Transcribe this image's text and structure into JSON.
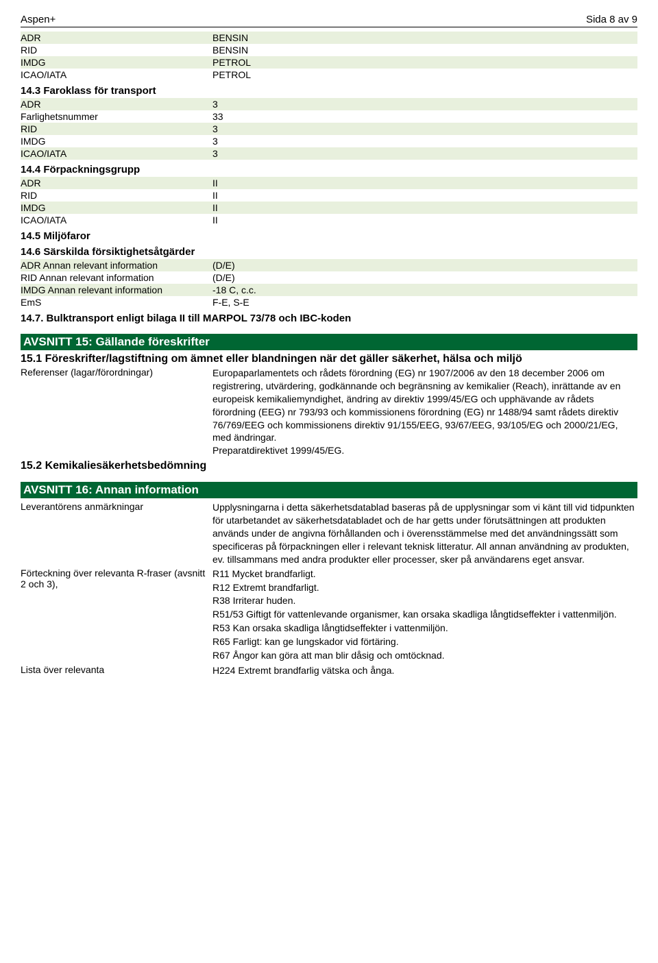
{
  "header": {
    "product": "Aspen+",
    "page": "Sida 8 av 9"
  },
  "sec14": {
    "rows1": [
      {
        "k": "ADR",
        "v": "BENSIN"
      },
      {
        "k": "RID",
        "v": "BENSIN"
      },
      {
        "k": "IMDG",
        "v": "PETROL"
      },
      {
        "k": "ICAO/IATA",
        "v": "PETROL"
      }
    ],
    "h143": "14.3 Faroklass för transport",
    "rows143": [
      {
        "k": "ADR",
        "v": "3"
      },
      {
        "k": "Farlighetsnummer",
        "v": "33"
      },
      {
        "k": "RID",
        "v": "3"
      },
      {
        "k": "IMDG",
        "v": "3"
      },
      {
        "k": "ICAO/IATA",
        "v": "3"
      }
    ],
    "h144": "14.4 Förpackningsgrupp",
    "rows144": [
      {
        "k": "ADR",
        "v": "II"
      },
      {
        "k": "RID",
        "v": "II"
      },
      {
        "k": "IMDG",
        "v": "II"
      },
      {
        "k": "ICAO/IATA",
        "v": "II"
      }
    ],
    "h145": "14.5 Miljöfaror",
    "h146": "14.6 Särskilda försiktighetsåtgärder",
    "rows146": [
      {
        "k": "ADR Annan relevant information",
        "v": "(D/E)"
      },
      {
        "k": "RID Annan relevant information",
        "v": "(D/E)"
      },
      {
        "k": "IMDG Annan relevant information",
        "v": "-18 C, c.c."
      },
      {
        "k": "EmS",
        "v": "F-E, S-E"
      }
    ],
    "h147": "14.7. Bulktransport enligt bilaga II till MARPOL 73/78 och IBC-koden"
  },
  "sec15": {
    "title": "AVSNITT 15: Gällande föreskrifter",
    "h151": "15.1 Föreskrifter/lagstiftning om ämnet eller blandningen när det gäller säkerhet, hälsa och miljö",
    "row151": {
      "k": "Referenser (lagar/förordningar)",
      "v": "Europaparlamentets och rådets förordning (EG) nr 1907/2006 av den 18 december 2006 om registrering, utvärdering, godkännande och begränsning av kemikalier (Reach), inrättande av en europeisk kemikaliemyndighet, ändring av direktiv 1999/45/EG och upphävande av rådets förordning (EEG) nr 793/93 och kommissionens förordning (EG) nr 1488/94 samt rådets direktiv 76/769/EEG och kommissionens direktiv 91/155/EEG, 93/67/EEG, 93/105/EG och 2000/21/EG, med ändringar.",
      "v2": "Preparatdirektivet 1999/45/EG."
    },
    "h152": "15.2 Kemikaliesäkerhetsbedömning"
  },
  "sec16": {
    "title": "AVSNITT 16: Annan information",
    "row1": {
      "k": "Leverantörens anmärkningar",
      "v": "Upplysningarna i detta säkerhetsdatablad baseras på de upplysningar som vi känt till vid tidpunkten för utarbetandet av säkerhetsdatabladet och de har getts under förutsättningen att produkten används under de angivna förhållanden och i överensstämmelse med det användningssätt som specificeras på förpackningen eller i relevant teknisk litteratur. All annan användning av produkten, ev. tillsammans med andra produkter eller processer, sker på användarens eget ansvar."
    },
    "row2": {
      "k": "Förteckning över relevanta R-fraser (avsnitt 2 och 3),",
      "lines": [
        "R11 Mycket brandfarligt.",
        "R12 Extremt brandfarligt.",
        "R38 Irriterar huden.",
        "R51/53 Giftigt för vattenlevande organismer, kan orsaka skadliga långtidseffekter i vattenmiljön.",
        "R53 Kan orsaka skadliga långtidseffekter i vattenmiljön.",
        "R65 Farligt: kan ge lungskador vid förtäring.",
        "R67 Ångor kan göra att man blir dåsig och omtöcknad."
      ]
    },
    "row3": {
      "k": "Lista över relevanta",
      "v": "H224 Extremt brandfarlig vätska och ånga."
    }
  }
}
